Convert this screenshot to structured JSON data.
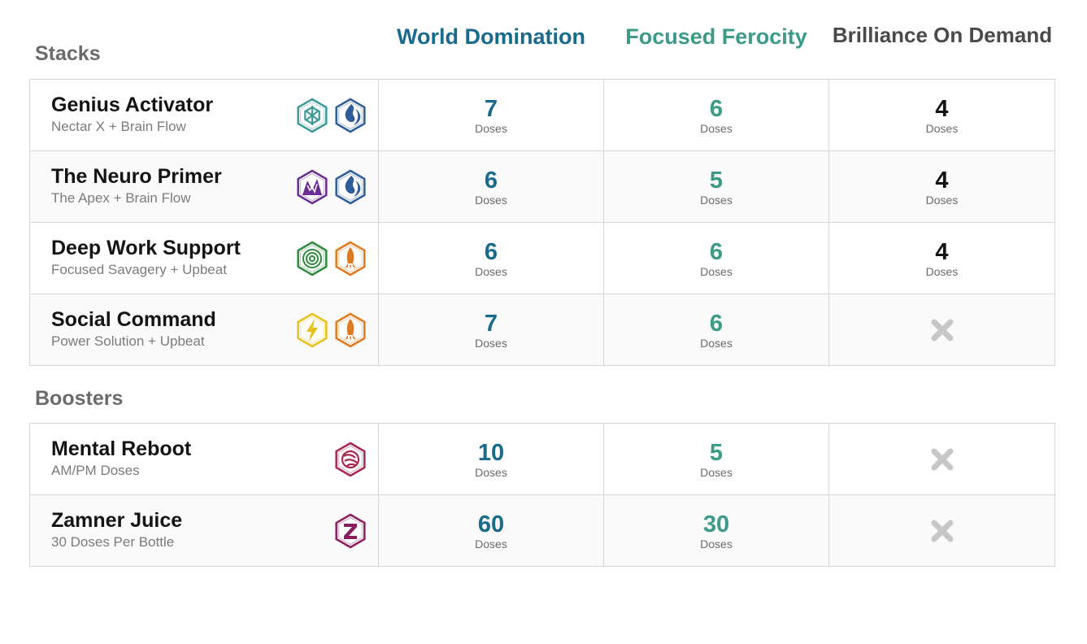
{
  "columns": [
    {
      "label": "World Domination",
      "color": "#1a6a8c"
    },
    {
      "label": "Focused Ferocity",
      "color": "#3b9a88"
    },
    {
      "label": "Brilliance On Demand",
      "color": "#4a4a4a"
    }
  ],
  "dose_unit": "Doses",
  "stacks": {
    "title": "Stacks",
    "rows": [
      {
        "name": "Genius Activator",
        "sub": "Nectar X + Brain Flow",
        "icons": [
          "nectar-x-icon",
          "brain-flow-icon"
        ],
        "values": [
          "7",
          "6",
          "4"
        ]
      },
      {
        "name": "The Neuro Primer",
        "sub": "The Apex + Brain Flow",
        "icons": [
          "apex-icon",
          "brain-flow-icon"
        ],
        "values": [
          "6",
          "5",
          "4"
        ]
      },
      {
        "name": "Deep Work Support",
        "sub": "Focused Savagery + Upbeat",
        "icons": [
          "focused-savagery-icon",
          "upbeat-icon"
        ],
        "values": [
          "6",
          "6",
          "4"
        ]
      },
      {
        "name": "Social Command",
        "sub": "Power Solution + Upbeat",
        "icons": [
          "power-solution-icon",
          "upbeat-icon"
        ],
        "values": [
          "7",
          "6",
          null
        ]
      }
    ]
  },
  "boosters": {
    "title": "Boosters",
    "rows": [
      {
        "name": "Mental Reboot",
        "sub": "AM/PM Doses",
        "icons": [
          "mental-reboot-icon"
        ],
        "values": [
          "10",
          "5",
          null
        ]
      },
      {
        "name": "Zamner Juice",
        "sub": "30 Doses Per Bottle",
        "icons": [
          "zamner-juice-icon"
        ],
        "values": [
          "60",
          "30",
          null
        ]
      }
    ]
  },
  "not_available_icon": "x-mark-icon",
  "icon_colors": {
    "nectar-x-icon": "#3e9a96",
    "brain-flow-icon": "#2f5d9a",
    "apex-icon": "#6a2d91",
    "focused-savagery-icon": "#2f8a3c",
    "upbeat-icon": "#e07a1f",
    "power-solution-icon": "#e8c01a",
    "mental-reboot-icon": "#a8294f",
    "zamner-juice-icon": "#8a1e5e"
  }
}
